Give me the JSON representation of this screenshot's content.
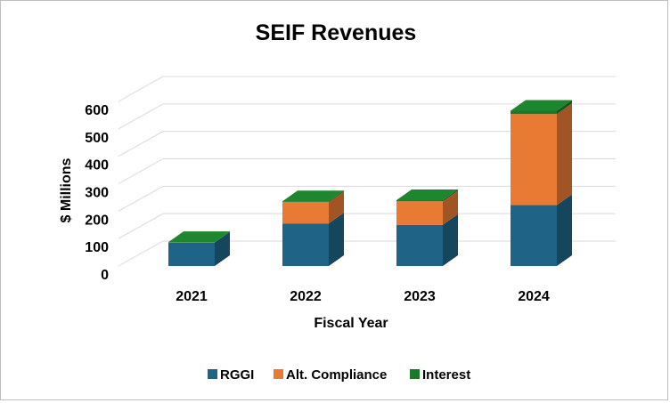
{
  "chart_data": {
    "type": "bar",
    "stacked": true,
    "three_d": true,
    "title": "SEIF Revenues",
    "xlabel": "Fiscal Year",
    "ylabel": "$ Millions",
    "categories": [
      "2021",
      "2022",
      "2023",
      "2024"
    ],
    "ylim": [
      0,
      600
    ],
    "yticks": [
      "0",
      "100",
      "200",
      "300",
      "400",
      "500",
      "600"
    ],
    "grid": true,
    "legend_position": "bottom",
    "series": [
      {
        "name": "RGGI",
        "color": "#1f6386",
        "values": [
          85,
          155,
          150,
          222
        ]
      },
      {
        "name": "Alt. Compliance",
        "color": "#e87a34",
        "values": [
          0,
          78,
          86,
          332
        ]
      },
      {
        "name": "Interest",
        "color": "#1a7a2a",
        "values": [
          2,
          3,
          4,
          12
        ]
      }
    ]
  }
}
